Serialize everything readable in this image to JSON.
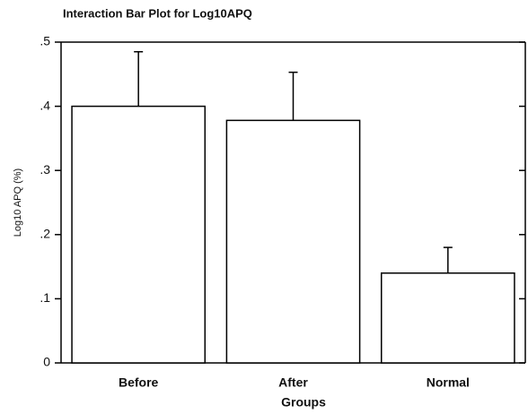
{
  "chart_data": {
    "type": "bar",
    "title": "Interaction Bar Plot for  Log10APQ",
    "y_label": "Log10 APQ (%)",
    "x_label": "Groups",
    "categories": [
      "Before",
      "After",
      "Normal"
    ],
    "values": [
      0.4,
      0.378,
      0.14
    ],
    "errors": [
      0.085,
      0.075,
      0.04
    ],
    "color": "#ffffff",
    "edge_color": "#000000",
    "ylim": [
      0,
      0.5
    ],
    "yticks": [
      0,
      {
        "value": 0.1,
        "label": ".1"
      },
      {
        "value": 0.2,
        "label": ".2"
      },
      {
        "value": 0.3,
        "label": ".3"
      },
      {
        "value": 0.4,
        "label": ".4"
      },
      {
        "value": 0.5,
        "label": ".5"
      }
    ]
  }
}
